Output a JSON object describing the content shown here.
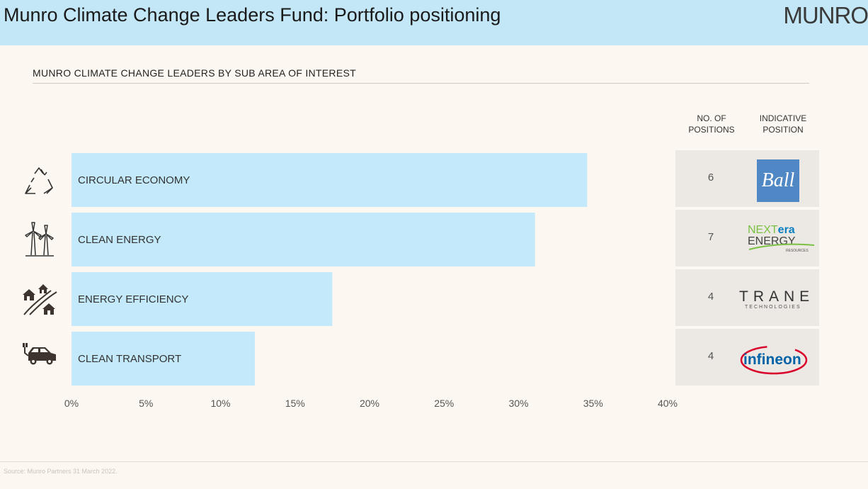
{
  "header": {
    "title": "Munro Climate Change Leaders Fund: Portfolio positioning",
    "brand": "MUNRO"
  },
  "colors": {
    "header_bg": "#c3e7f6",
    "bar": "#c3e9fa",
    "page_bg": "#fcf8f1",
    "panel_bg": "#ece8e3"
  },
  "columns": {
    "positions_line1": "NO. OF",
    "positions_line2": "POSITIONS",
    "indicative_line1": "INDICATIVE",
    "indicative_line2": "POSITION"
  },
  "rows": [
    {
      "category": "CIRCULAR ECONOMY",
      "icon": "recycle-icon",
      "positions": "6",
      "logo": "Ball"
    },
    {
      "category": "CLEAN ENERGY",
      "icon": "wind-turbine-icon",
      "positions": "7",
      "logo_line1a": "NEXT",
      "logo_line1b": "era",
      "logo_line2": "ENERGY",
      "logo_line3": "RESOURCES"
    },
    {
      "category": "ENERGY EFFICIENCY",
      "icon": "houses-road-icon",
      "positions": "4",
      "logo_line1": "TRANE",
      "logo_line2": "TECHNOLOGIES"
    },
    {
      "category": "CLEAN TRANSPORT",
      "icon": "electric-car-icon",
      "positions": "4",
      "logo": "infineon"
    }
  ],
  "chart_data": {
    "type": "bar",
    "orientation": "horizontal",
    "title": "MUNRO CLIMATE CHANGE LEADERS BY SUB AREA OF INTEREST",
    "categories": [
      "CIRCULAR ECONOMY",
      "CLEAN ENERGY",
      "ENERGY EFFICIENCY",
      "CLEAN TRANSPORT"
    ],
    "values": [
      34.6,
      31.1,
      17.5,
      12.3
    ],
    "xlim": [
      0,
      40
    ],
    "xticks": [
      "0%",
      "5%",
      "10%",
      "15%",
      "20%",
      "25%",
      "30%",
      "35%",
      "40%"
    ],
    "grid": false
  },
  "footer": {
    "source": "Source: Munro Partners 31 March 2022."
  }
}
